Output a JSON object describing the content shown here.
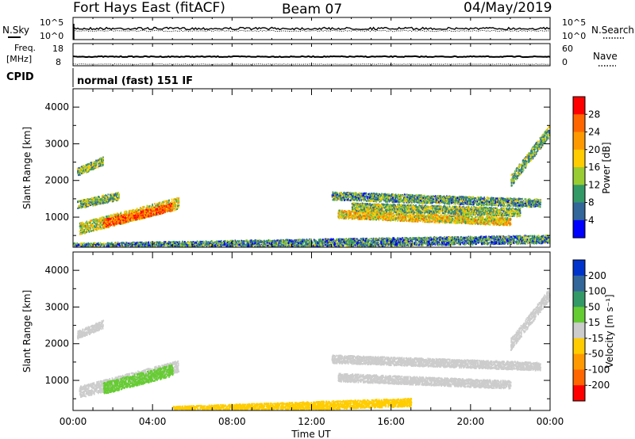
{
  "header": {
    "station": "Fort Hays East (fitACF)",
    "beam": "Beam 07",
    "date": "04/May/2019"
  },
  "top_panels": {
    "nsky_label": "N.Sky",
    "nsearch_label": "N.Search",
    "nsky_ticks": [
      "10^5",
      "10^0"
    ],
    "nsearch_ticks": [
      "10^5",
      "10^0"
    ],
    "freq_label_line1": "Freq.",
    "freq_label_line2": "[MHz]",
    "freq_ticks": [
      "18",
      "8"
    ],
    "nave_label": "Nave",
    "nave_ticks": [
      "60",
      "0"
    ],
    "cpid_label": "CPID",
    "cpid_value": "normal (fast) 151 IF"
  },
  "chart_data": [
    {
      "type": "heatmap",
      "name": "power-panel",
      "ylabel": "Slant Range [km]",
      "xlabel": "",
      "colorbar_label": "Power [dB]",
      "colorbar_ticks": [
        "28",
        "24",
        "20",
        "16",
        "12",
        "8",
        "4"
      ],
      "colorbar_colors": [
        "#ff0000",
        "#ff6600",
        "#ff9900",
        "#ffcc00",
        "#99cc33",
        "#339966",
        "#336699",
        "#0000ff"
      ],
      "y_ticks": [
        "4000",
        "3000",
        "2000",
        "1000"
      ],
      "ylim": [
        180,
        4500
      ],
      "xlim": [
        "00:00",
        "24:00"
      ],
      "regions": [
        {
          "t0": 0.3,
          "t1": 5.3,
          "r0": 700,
          "r1": 1400,
          "level": 16
        },
        {
          "t0": 1.5,
          "t1": 5.0,
          "r0": 850,
          "r1": 1300,
          "level": 26
        },
        {
          "t0": 0.2,
          "t1": 1.5,
          "r0": 2250,
          "r1": 2550,
          "level": 12
        },
        {
          "t0": 0.2,
          "t1": 2.3,
          "r0": 1350,
          "r1": 1600,
          "level": 12
        },
        {
          "t0": 13.0,
          "t1": 23.5,
          "r0": 1600,
          "r1": 1400,
          "level": 10
        },
        {
          "t0": 13.3,
          "t1": 22.0,
          "r0": 1100,
          "r1": 900,
          "level": 18
        },
        {
          "t0": 14.0,
          "t1": 22.5,
          "r0": 1300,
          "r1": 1150,
          "level": 13
        },
        {
          "t0": 22.0,
          "t1": 24.0,
          "r0": 2000,
          "r1": 3400,
          "level": 12
        },
        {
          "t0": 0.0,
          "t1": 24.0,
          "r0": 200,
          "r1": 420,
          "level": 9
        }
      ]
    },
    {
      "type": "heatmap",
      "name": "velocity-panel",
      "ylabel": "Slant Range [km]",
      "xlabel": "Time UT",
      "colorbar_label": "Velocity [m s⁻¹]",
      "colorbar_ticks": [
        "200",
        "100",
        "50",
        "15",
        "-15",
        "-50",
        "-100",
        "-200"
      ],
      "colorbar_colors": [
        "#0033cc",
        "#336699",
        "#339966",
        "#66cc33",
        "#cccccc",
        "#ffcc00",
        "#ff9900",
        "#ff6600",
        "#ff0000"
      ],
      "y_ticks": [
        "4000",
        "3000",
        "2000",
        "1000"
      ],
      "x_ticks": [
        "00:00",
        "04:00",
        "08:00",
        "12:00",
        "16:00",
        "20:00",
        "00:00"
      ],
      "ylim": [
        180,
        4500
      ],
      "xlim": [
        "00:00",
        "24:00"
      ],
      "regions": [
        {
          "t0": 0.3,
          "t1": 5.3,
          "r0": 700,
          "r1": 1400,
          "level": 0
        },
        {
          "t0": 1.5,
          "t1": 5.0,
          "r0": 800,
          "r1": 1300,
          "level": 40
        },
        {
          "t0": 0.2,
          "t1": 1.5,
          "r0": 2250,
          "r1": 2550,
          "level": 0
        },
        {
          "t0": 13.0,
          "t1": 23.5,
          "r0": 1600,
          "r1": 1400,
          "level": 0
        },
        {
          "t0": 13.3,
          "t1": 22.0,
          "r0": 1100,
          "r1": 900,
          "level": 0
        },
        {
          "t0": 22.0,
          "t1": 24.0,
          "r0": 2000,
          "r1": 3400,
          "level": 0
        },
        {
          "t0": 5.0,
          "t1": 17.0,
          "r0": 200,
          "r1": 420,
          "level": -40
        }
      ]
    }
  ]
}
